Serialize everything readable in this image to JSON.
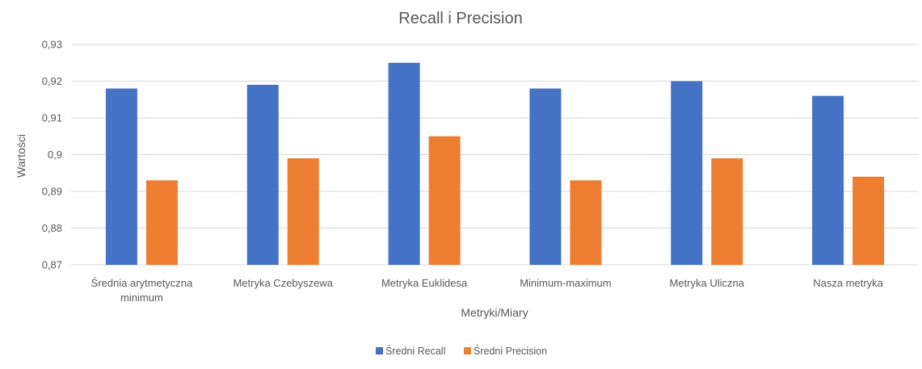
{
  "chart_data": {
    "type": "bar",
    "title": "Recall i Precision",
    "xlabel": "Metryki/Miary",
    "ylabel": "Wartości",
    "categories": [
      [
        "Średnia arytmetyczna",
        "minimum"
      ],
      [
        "Metryka Czebyszewa"
      ],
      [
        "Metryka Euklidesa"
      ],
      [
        "Minimum-maximum"
      ],
      [
        "Metryka Uliczna"
      ],
      [
        "Nasza metryka"
      ]
    ],
    "series": [
      {
        "name": "Średni Recall",
        "color": "#4472C4",
        "values": [
          0.918,
          0.919,
          0.925,
          0.918,
          0.92,
          0.916
        ]
      },
      {
        "name": "Średni Precision",
        "color": "#ED7D31",
        "values": [
          0.893,
          0.899,
          0.905,
          0.893,
          0.899,
          0.894
        ]
      }
    ],
    "ylim": [
      0.87,
      0.93
    ],
    "yticks": [
      0.87,
      0.88,
      0.89,
      0.9,
      0.91,
      0.92,
      0.93
    ],
    "ytick_labels": [
      "0,87",
      "0,88",
      "0,89",
      "0,9",
      "0,91",
      "0,92",
      "0,93"
    ],
    "grid": true,
    "legend": "bottom"
  }
}
